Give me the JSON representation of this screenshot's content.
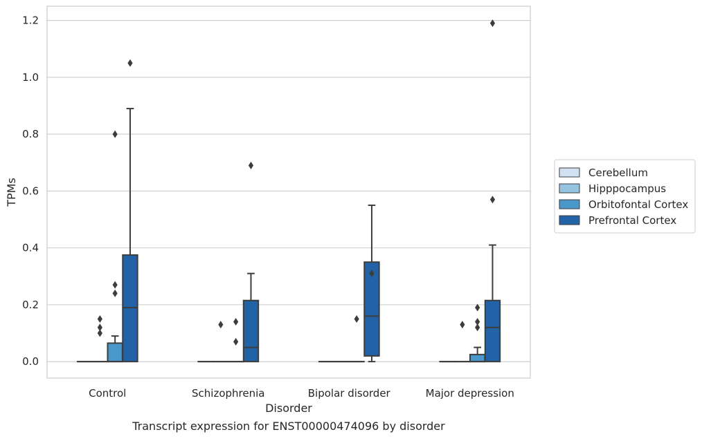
{
  "chart_data": {
    "type": "box",
    "caption": "Transcript expression for ENST00000474096 by disorder",
    "xlabel": "Disorder",
    "ylabel": "TPMs",
    "ylim": [
      -0.058,
      1.25
    ],
    "yticks": [
      0.0,
      0.2,
      0.4,
      0.6,
      0.8,
      1.0,
      1.2
    ],
    "ytick_labels": [
      "0.0",
      "0.2",
      "0.4",
      "0.6",
      "0.8",
      "1.0",
      "1.2"
    ],
    "grid": "horizontal",
    "legend_position": "right",
    "categories": [
      "Control",
      "Schizophrenia",
      "Bipolar disorder",
      "Major depression"
    ],
    "series": [
      {
        "name": "Cerebellum",
        "color": "#d0e1f2",
        "boxes": [
          {
            "q1": 0,
            "median": 0,
            "q3": 0,
            "whisker_low": 0,
            "whisker_high": 0,
            "outliers": []
          },
          {
            "q1": 0,
            "median": 0,
            "q3": 0,
            "whisker_low": 0,
            "whisker_high": 0,
            "outliers": []
          },
          {
            "q1": 0,
            "median": 0,
            "q3": 0,
            "whisker_low": 0,
            "whisker_high": 0,
            "outliers": []
          },
          {
            "q1": 0,
            "median": 0,
            "q3": 0,
            "whisker_low": 0,
            "whisker_high": 0,
            "outliers": []
          }
        ]
      },
      {
        "name": "Hipppocampus",
        "color": "#94c4df",
        "boxes": [
          {
            "q1": 0,
            "median": 0,
            "q3": 0,
            "whisker_low": 0,
            "whisker_high": 0,
            "outliers": [
              0.1,
              0.12,
              0.15
            ]
          },
          {
            "q1": 0,
            "median": 0,
            "q3": 0,
            "whisker_low": 0,
            "whisker_high": 0,
            "outliers": [
              0.13
            ]
          },
          {
            "q1": 0,
            "median": 0,
            "q3": 0,
            "whisker_low": 0,
            "whisker_high": 0,
            "outliers": []
          },
          {
            "q1": 0,
            "median": 0,
            "q3": 0,
            "whisker_low": 0,
            "whisker_high": 0,
            "outliers": [
              0.13
            ]
          }
        ]
      },
      {
        "name": "Orbitofontal Cortex",
        "color": "#4a98c9",
        "boxes": [
          {
            "q1": 0,
            "median": 0,
            "q3": 0.065,
            "whisker_low": 0,
            "whisker_high": 0.09,
            "outliers": [
              0.24,
              0.27,
              0.8
            ]
          },
          {
            "q1": 0,
            "median": 0,
            "q3": 0,
            "whisker_low": 0,
            "whisker_high": 0,
            "outliers": [
              0.07,
              0.14
            ]
          },
          {
            "q1": 0,
            "median": 0,
            "q3": 0,
            "whisker_low": 0,
            "whisker_high": 0,
            "outliers": [
              0.15
            ]
          },
          {
            "q1": 0,
            "median": 0,
            "q3": 0.025,
            "whisker_low": 0,
            "whisker_high": 0.05,
            "outliers": [
              0.12,
              0.14,
              0.19
            ]
          }
        ]
      },
      {
        "name": "Prefrontal Cortex",
        "color": "#2262a6",
        "boxes": [
          {
            "q1": 0,
            "median": 0.19,
            "q3": 0.375,
            "whisker_low": 0,
            "whisker_high": 0.89,
            "outliers": [
              1.05
            ]
          },
          {
            "q1": 0,
            "median": 0.05,
            "q3": 0.215,
            "whisker_low": 0,
            "whisker_high": 0.31,
            "outliers": [
              0.69
            ]
          },
          {
            "q1": 0.02,
            "median": 0.16,
            "q3": 0.35,
            "whisker_low": 0,
            "whisker_high": 0.55,
            "outliers": [
              0.31
            ]
          },
          {
            "q1": 0,
            "median": 0.12,
            "q3": 0.215,
            "whisker_low": 0,
            "whisker_high": 0.41,
            "outliers": [
              0.57,
              1.19
            ]
          }
        ]
      }
    ]
  }
}
